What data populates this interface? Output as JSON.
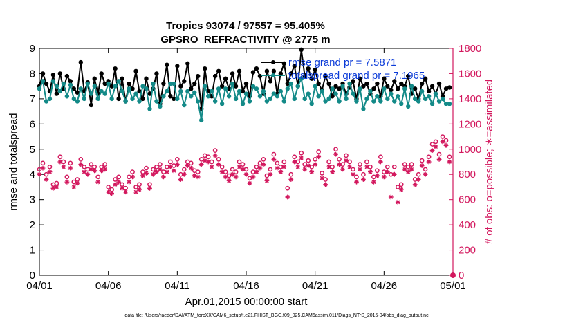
{
  "chart_data": {
    "type": "line",
    "title": "Tropics 93074 / 97557 = 95.405%",
    "subtitle": "GPSRO_REFRACTIVITY @ 2775 m",
    "xlabel": "Apr.01,2015 00:00:00 start",
    "ylabel_left": "rmse and totalspread",
    "ylabel_right": "# of obs: o=possible; ∗=assimilated",
    "x_ticks": [
      "04/01",
      "04/06",
      "04/11",
      "04/16",
      "04/21",
      "04/26",
      "05/01"
    ],
    "y_left_ticks": [
      "0",
      "1",
      "2",
      "3",
      "4",
      "5",
      "6",
      "7",
      "8",
      "9"
    ],
    "y_right_ticks": [
      "0",
      "200",
      "400",
      "600",
      "800",
      "1000",
      "1200",
      "1400",
      "1600",
      "1800"
    ],
    "xlim_days": [
      0,
      30
    ],
    "ylim_left": [
      0,
      9
    ],
    "ylim_right": [
      0,
      1800
    ],
    "series": [
      {
        "name": "rmse",
        "legend": "rmse grand pr = 7.5871",
        "axis": "left",
        "color": "#000000",
        "marker": "dot",
        "x": [
          0,
          0.25,
          0.5,
          0.75,
          1,
          1.25,
          1.5,
          1.75,
          2,
          2.25,
          2.5,
          2.75,
          3,
          3.25,
          3.5,
          3.75,
          4,
          4.25,
          4.5,
          4.75,
          5,
          5.25,
          5.5,
          5.75,
          6,
          6.25,
          6.5,
          6.75,
          7,
          7.25,
          7.5,
          7.75,
          8,
          8.25,
          8.5,
          8.75,
          9,
          9.25,
          9.5,
          9.75,
          10,
          10.25,
          10.5,
          10.75,
          11,
          11.25,
          11.5,
          11.75,
          12,
          12.25,
          12.5,
          12.75,
          13,
          13.25,
          13.5,
          13.75,
          14,
          14.25,
          14.5,
          14.75,
          15,
          15.25,
          15.5,
          15.75,
          16,
          16.25,
          16.5,
          16.75,
          17,
          17.25,
          17.5,
          17.75,
          18,
          18.25,
          18.5,
          18.75,
          19,
          19.25,
          19.5,
          19.75,
          20,
          20.25,
          20.5,
          20.75,
          21,
          21.25,
          21.5,
          21.75,
          22,
          22.25,
          22.5,
          22.75,
          23,
          23.25,
          23.5,
          23.75,
          24,
          24.25,
          24.5,
          24.75,
          25,
          25.25,
          25.5,
          25.75,
          26,
          26.25,
          26.5,
          26.75,
          27,
          27.25,
          27.5,
          27.75,
          28,
          28.25,
          28.5,
          28.75,
          29,
          29.25,
          29.5,
          29.75
        ],
        "y": [
          7.5,
          8.0,
          7.6,
          7.3,
          7.95,
          7.2,
          8.0,
          7.4,
          7.9,
          7.7,
          7.4,
          7.25,
          8.45,
          7.3,
          7.65,
          6.75,
          7.8,
          7.2,
          8.0,
          7.6,
          7.7,
          7.5,
          8.2,
          7.0,
          7.8,
          6.9,
          7.6,
          7.4,
          8.1,
          7.3,
          7.0,
          7.8,
          7.2,
          7.4,
          8.0,
          6.8,
          7.6,
          8.35,
          7.1,
          7.0,
          8.3,
          7.5,
          7.7,
          8.4,
          7.4,
          7.6,
          7.9,
          6.6,
          8.2,
          7.3,
          7.1,
          7.9,
          8.1,
          7.5,
          7.8,
          7.4,
          8.0,
          7.5,
          8.1,
          7.3,
          7.6,
          7.1,
          8.05,
          8.2,
          7.9,
          7.2,
          8.1,
          7.7,
          8.1,
          7.2,
          8.0,
          8.4,
          7.6,
          8.0,
          8.3,
          7.5,
          8.95,
          7.9,
          8.2,
          7.8,
          8.15,
          7.6,
          7.35,
          7.9,
          7.6,
          7.1,
          7.5,
          7.4,
          7.6,
          7.2,
          7.45,
          7.7,
          7.0,
          7.8,
          7.5,
          7.6,
          7.2,
          7.4,
          7.6,
          7.1,
          7.8,
          7.5,
          7.35,
          7.7,
          7.4,
          7.6,
          7.5,
          7.9,
          7.2,
          7.4,
          7.0,
          7.6,
          7.8,
          7.3,
          7.5,
          7.2,
          7.6,
          7.1,
          7.4,
          7.45
        ]
      },
      {
        "name": "totalspread",
        "legend": "totalspread grand pr = 7.1965",
        "axis": "left",
        "color": "#138a88",
        "marker": "dot",
        "x": [
          0,
          0.25,
          0.5,
          0.75,
          1,
          1.25,
          1.5,
          1.75,
          2,
          2.25,
          2.5,
          2.75,
          3,
          3.25,
          3.5,
          3.75,
          4,
          4.25,
          4.5,
          4.75,
          5,
          5.25,
          5.5,
          5.75,
          6,
          6.25,
          6.5,
          6.75,
          7,
          7.25,
          7.5,
          7.75,
          8,
          8.25,
          8.5,
          8.75,
          9,
          9.25,
          9.5,
          9.75,
          10,
          10.25,
          10.5,
          10.75,
          11,
          11.25,
          11.5,
          11.75,
          12,
          12.25,
          12.5,
          12.75,
          13,
          13.25,
          13.5,
          13.75,
          14,
          14.25,
          14.5,
          14.75,
          15,
          15.25,
          15.5,
          15.75,
          16,
          16.25,
          16.5,
          16.75,
          17,
          17.25,
          17.5,
          17.75,
          18,
          18.25,
          18.5,
          18.75,
          19,
          19.25,
          19.5,
          19.75,
          20,
          20.25,
          20.5,
          20.75,
          21,
          21.25,
          21.5,
          21.75,
          22,
          22.25,
          22.5,
          22.75,
          23,
          23.25,
          23.5,
          23.75,
          24,
          24.25,
          24.5,
          24.75,
          25,
          25.25,
          25.5,
          25.75,
          26,
          26.25,
          26.5,
          26.75,
          27,
          27.25,
          27.5,
          27.75,
          28,
          28.25,
          28.5,
          28.75,
          29,
          29.25,
          29.5,
          29.75
        ],
        "y": [
          7.4,
          7.7,
          6.9,
          7.0,
          7.7,
          7.5,
          7.3,
          7.6,
          7.1,
          7.55,
          7.0,
          6.9,
          7.4,
          7.0,
          7.6,
          7.2,
          7.5,
          7.0,
          7.3,
          7.2,
          7.6,
          7.0,
          7.5,
          7.7,
          7.3,
          6.9,
          7.4,
          7.0,
          7.2,
          6.9,
          7.5,
          7.4,
          6.6,
          7.6,
          6.9,
          6.7,
          7.1,
          7.3,
          7.6,
          7.6,
          7.0,
          7.3,
          6.75,
          7.3,
          7.1,
          7.25,
          6.9,
          6.15,
          7.5,
          7.1,
          7.3,
          6.9,
          7.4,
          6.8,
          7.4,
          7.1,
          7.6,
          7.0,
          7.3,
          6.8,
          7.2,
          6.9,
          7.5,
          7.4,
          7.1,
          7.3,
          6.9,
          7.0,
          7.2,
          7.1,
          7.3,
          6.9,
          7.4,
          7.6,
          7.0,
          7.5,
          7.8,
          7.0,
          7.2,
          6.8,
          7.5,
          7.1,
          7.3,
          6.9,
          7.0,
          7.4,
          7.2,
          6.9,
          7.5,
          7.0,
          7.6,
          7.2,
          6.9,
          7.4,
          6.6,
          7.0,
          7.3,
          6.9,
          7.1,
          6.9,
          7.4,
          7.0,
          7.2,
          6.9,
          7.1,
          6.8,
          7.4,
          6.7,
          7.5,
          7.0,
          6.9,
          7.3,
          7.0,
          7.1,
          6.8,
          7.2,
          6.9,
          7.0,
          6.8,
          6.8
        ]
      },
      {
        "name": "possible",
        "axis": "right",
        "color": "#d3185e",
        "marker": "o",
        "x": [
          0,
          0.25,
          0.5,
          0.75,
          1,
          1.25,
          1.5,
          1.75,
          2,
          2.25,
          2.5,
          2.75,
          3,
          3.25,
          3.5,
          3.75,
          4,
          4.25,
          4.5,
          4.75,
          5,
          5.25,
          5.5,
          5.75,
          6,
          6.25,
          6.5,
          6.75,
          7,
          7.25,
          7.5,
          7.75,
          8,
          8.25,
          8.5,
          8.75,
          9,
          9.25,
          9.5,
          9.75,
          10,
          10.25,
          10.5,
          10.75,
          11,
          11.25,
          11.5,
          11.75,
          12,
          12.25,
          12.5,
          12.75,
          13,
          13.25,
          13.5,
          13.75,
          14,
          14.25,
          14.5,
          14.75,
          15,
          15.25,
          15.5,
          15.75,
          16,
          16.25,
          16.5,
          16.75,
          17,
          17.25,
          17.5,
          17.75,
          18,
          18.25,
          18.5,
          18.75,
          19,
          19.25,
          19.5,
          19.75,
          20,
          20.25,
          20.5,
          20.75,
          21,
          21.25,
          21.5,
          21.75,
          22,
          22.25,
          22.5,
          22.75,
          23,
          23.25,
          23.5,
          23.75,
          24,
          24.25,
          24.5,
          24.75,
          25,
          25.25,
          25.5,
          25.75,
          26,
          26.25,
          26.5,
          26.75,
          27,
          27.25,
          27.5,
          27.75,
          28,
          28.25,
          28.5,
          28.75,
          29,
          29.25,
          29.5,
          29.75
        ],
        "y": [
          840,
          890,
          800,
          860,
          720,
          730,
          940,
          900,
          780,
          890,
          740,
          760,
          920,
          860,
          840,
          880,
          860,
          780,
          860,
          880,
          700,
          680,
          760,
          780,
          720,
          690,
          780,
          820,
          700,
          720,
          820,
          850,
          720,
          840,
          860,
          880,
          820,
          860,
          900,
          870,
          920,
          800,
          840,
          900,
          890,
          830,
          820,
          920,
          950,
          940,
          900,
          990,
          920,
          860,
          820,
          790,
          840,
          820,
          900,
          880,
          840,
          770,
          820,
          860,
          890,
          920,
          790,
          840,
          960,
          890,
          860,
          900,
          690,
          800,
          940,
          900,
          970,
          880,
          910,
          860,
          920,
          980,
          810,
          760,
          900,
          860,
          1000,
          920,
          880,
          950,
          900,
          840,
          780,
          880,
          800,
          900,
          860,
          780,
          830,
          940,
          820,
          860,
          800,
          860,
          700,
          720,
          880,
          860,
          880,
          760,
          800,
          910,
          840,
          940,
          1040,
          1060,
          960,
          1100,
          1070,
          940
        ]
      },
      {
        "name": "assimilated",
        "axis": "right",
        "color": "#d3185e",
        "marker": "star",
        "x": [
          0,
          0.25,
          0.5,
          0.75,
          1,
          1.25,
          1.5,
          1.75,
          2,
          2.25,
          2.5,
          2.75,
          3,
          3.25,
          3.5,
          3.75,
          4,
          4.25,
          4.5,
          4.75,
          5,
          5.25,
          5.5,
          5.75,
          6,
          6.25,
          6.5,
          6.75,
          7,
          7.25,
          7.5,
          7.75,
          8,
          8.25,
          8.5,
          8.75,
          9,
          9.25,
          9.5,
          9.75,
          10,
          10.25,
          10.5,
          10.75,
          11,
          11.25,
          11.5,
          11.75,
          12,
          12.25,
          12.5,
          12.75,
          13,
          13.25,
          13.5,
          13.75,
          14,
          14.25,
          14.5,
          14.75,
          15,
          15.25,
          15.5,
          15.75,
          16,
          16.25,
          16.5,
          16.75,
          17,
          17.25,
          17.5,
          17.75,
          18,
          18.25,
          18.5,
          18.75,
          19,
          19.25,
          19.5,
          19.75,
          20,
          20.25,
          20.5,
          20.75,
          21,
          21.25,
          21.5,
          21.75,
          22,
          22.25,
          22.5,
          22.75,
          23,
          23.25,
          23.5,
          23.75,
          24,
          24.25,
          24.5,
          24.75,
          25,
          25.25,
          25.5,
          25.75,
          26,
          26.25,
          26.5,
          26.75,
          27,
          27.25,
          27.5,
          27.75,
          28,
          28.25,
          28.5,
          28.75,
          29,
          29.25,
          29.5,
          29.75
        ],
        "y": [
          800,
          850,
          760,
          820,
          690,
          700,
          900,
          860,
          740,
          850,
          700,
          730,
          880,
          820,
          800,
          840,
          830,
          740,
          830,
          840,
          660,
          650,
          720,
          740,
          690,
          660,
          740,
          780,
          660,
          680,
          790,
          810,
          690,
          800,
          820,
          840,
          780,
          820,
          860,
          830,
          880,
          760,
          800,
          870,
          850,
          790,
          780,
          880,
          910,
          900,
          860,
          950,
          880,
          820,
          780,
          750,
          800,
          780,
          860,
          840,
          800,
          730,
          780,
          820,
          850,
          880,
          750,
          800,
          920,
          850,
          820,
          860,
          620,
          760,
          900,
          860,
          930,
          840,
          870,
          820,
          880,
          940,
          770,
          720,
          860,
          820,
          960,
          880,
          840,
          910,
          860,
          800,
          740,
          840,
          760,
          860,
          820,
          740,
          790,
          900,
          780,
          820,
          620,
          800,
          580,
          680,
          840,
          820,
          840,
          720,
          760,
          870,
          800,
          900,
          990,
          1020,
          920,
          1060,
          1030,
          900
        ]
      }
    ],
    "footer": "data file: /Users/raeder/DAI/ATM_forcXX/CAM6_setup/f.e21.FHIST_BGC.f09_025.CAM6assim.011/Diags_NTrS_2015-04/obs_diag_output.nc"
  }
}
